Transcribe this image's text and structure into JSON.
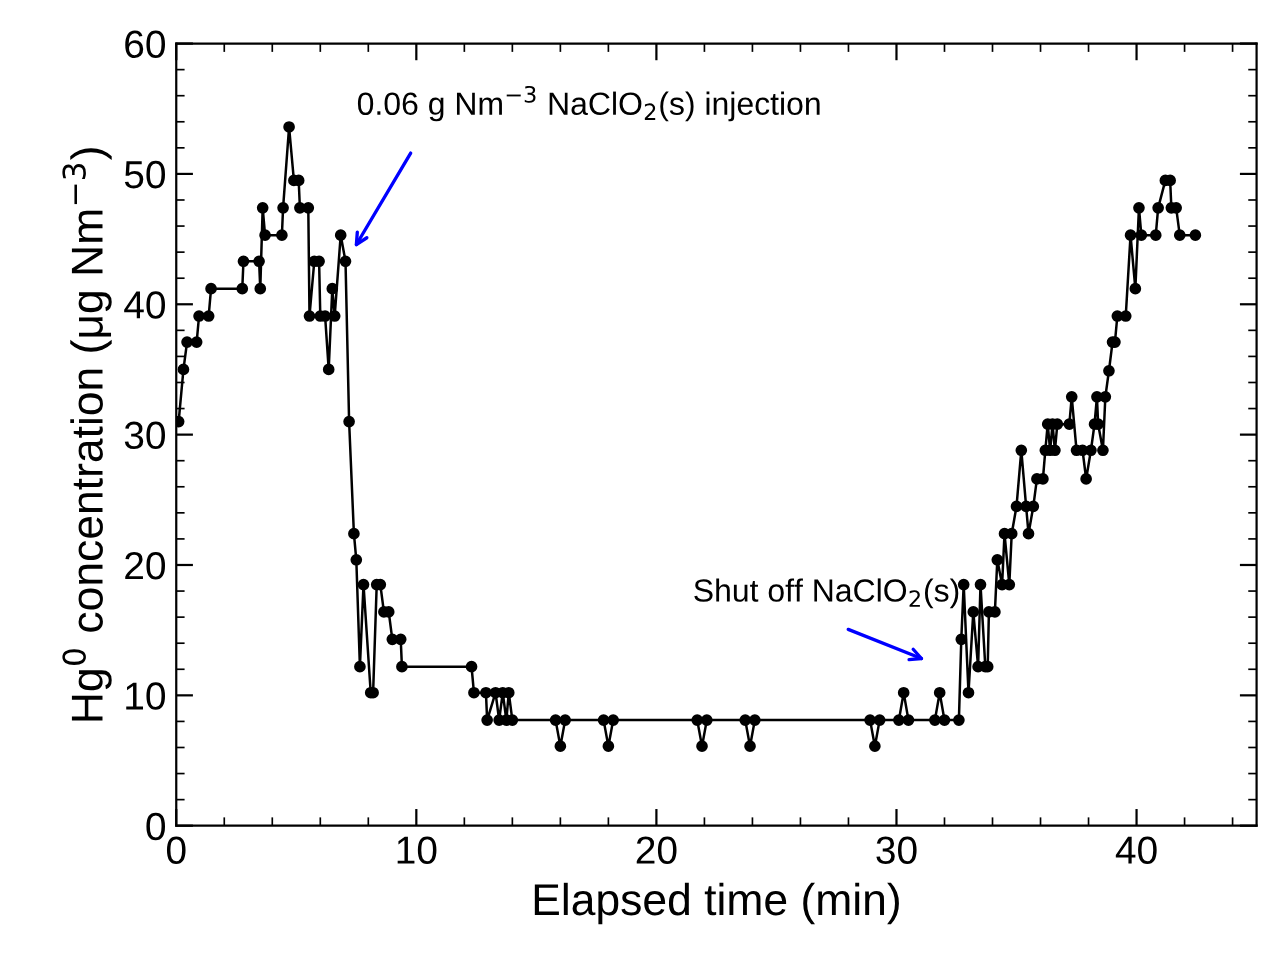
{
  "chart_data": {
    "type": "line",
    "xlabel": "Elapsed time (min)",
    "ylabel": "Hg$^{0}$ concentration (μg Nm$^{−3}$)",
    "xlim": [
      0,
      45
    ],
    "xticks": [
      0,
      10,
      20,
      30,
      40
    ],
    "ylim": [
      0,
      60
    ],
    "yticks": [
      0,
      10,
      20,
      30,
      40,
      50,
      60
    ],
    "grid": false,
    "legend": false,
    "marker": "circle",
    "line_style": "solid",
    "annotations": [
      "0.06 g Nm$^{−3}$ NaClO$_{2}$(s) injection",
      "Shut off NaClO$_{2}$(s)"
    ],
    "series": [
      {
        "color": "#000000",
        "x": [
          0.1,
          0.3,
          0.45,
          0.85,
          0.95,
          1.35,
          1.45,
          2.75,
          2.8,
          3.45,
          3.5,
          3.6,
          3.7,
          4.4,
          4.45,
          4.7,
          4.9,
          5.1,
          5.15,
          5.5,
          5.55,
          5.75,
          5.95,
          6.0,
          6.2,
          6.35,
          6.5,
          6.6,
          6.85,
          7.05,
          7.2,
          7.4,
          7.5,
          7.65,
          7.8,
          8.1,
          8.2,
          8.35,
          8.5,
          8.65,
          8.85,
          9.0,
          9.35,
          9.4,
          12.3,
          12.4,
          12.9,
          12.95,
          13.3,
          13.45,
          13.6,
          13.75,
          13.85,
          14.0,
          15.8,
          16.0,
          16.2,
          17.8,
          18.0,
          18.2,
          21.7,
          21.9,
          22.1,
          23.7,
          23.9,
          24.1,
          28.9,
          29.1,
          29.3,
          30.1,
          30.3,
          30.5,
          31.6,
          31.8,
          32.0,
          32.6,
          32.7,
          32.8,
          33.0,
          33.2,
          33.4,
          33.5,
          33.7,
          33.8,
          33.85,
          34.1,
          34.2,
          34.4,
          34.5,
          34.7,
          34.8,
          35.0,
          35.2,
          35.4,
          35.5,
          35.7,
          35.85,
          36.1,
          36.2,
          36.3,
          36.4,
          36.5,
          36.6,
          36.7,
          37.2,
          37.3,
          37.5,
          37.75,
          37.9,
          38.1,
          38.25,
          38.35,
          38.4,
          38.6,
          38.7,
          38.85,
          39.0,
          39.1,
          39.2,
          39.55,
          39.75,
          39.95,
          40.1,
          40.2,
          40.8,
          40.9,
          41.2,
          41.4,
          41.45,
          41.65,
          41.8,
          42.45
        ],
        "values": [
          31,
          35,
          37.1,
          37.1,
          39.1,
          39.1,
          41.2,
          41.2,
          43.3,
          43.3,
          41.2,
          47.4,
          45.3,
          45.3,
          47.4,
          53.6,
          49.5,
          49.5,
          47.4,
          47.4,
          39.1,
          43.3,
          43.3,
          39.1,
          39.1,
          35,
          41.2,
          39.1,
          45.3,
          43.3,
          31,
          22.4,
          20.4,
          12.2,
          18.5,
          10.2,
          10.2,
          18.5,
          18.5,
          16.4,
          16.4,
          14.3,
          14.3,
          12.2,
          12.2,
          10.2,
          10.2,
          8.1,
          10.2,
          8.1,
          10.2,
          8.1,
          10.2,
          8.1,
          8.1,
          6.1,
          8.1,
          8.1,
          6.1,
          8.1,
          8.1,
          6.1,
          8.1,
          8.1,
          6.1,
          8.1,
          8.1,
          6.1,
          8.1,
          8.1,
          10.2,
          8.1,
          8.1,
          10.2,
          8.1,
          8.1,
          14.3,
          18.5,
          10.2,
          16.4,
          12.2,
          18.5,
          12.2,
          12.2,
          16.4,
          16.4,
          20.4,
          18.5,
          22.4,
          18.5,
          22.4,
          24.5,
          28.8,
          24.5,
          22.4,
          24.5,
          26.6,
          26.6,
          28.8,
          30.8,
          28.8,
          30.8,
          28.8,
          30.8,
          30.8,
          32.9,
          28.8,
          28.8,
          26.6,
          28.8,
          30.8,
          32.9,
          30.8,
          28.8,
          32.9,
          34.9,
          37.1,
          37.1,
          39.1,
          39.1,
          45.3,
          41.2,
          47.4,
          45.3,
          45.3,
          47.4,
          49.5,
          49.5,
          47.4,
          47.4,
          45.3,
          45.3
        ]
      }
    ]
  }
}
